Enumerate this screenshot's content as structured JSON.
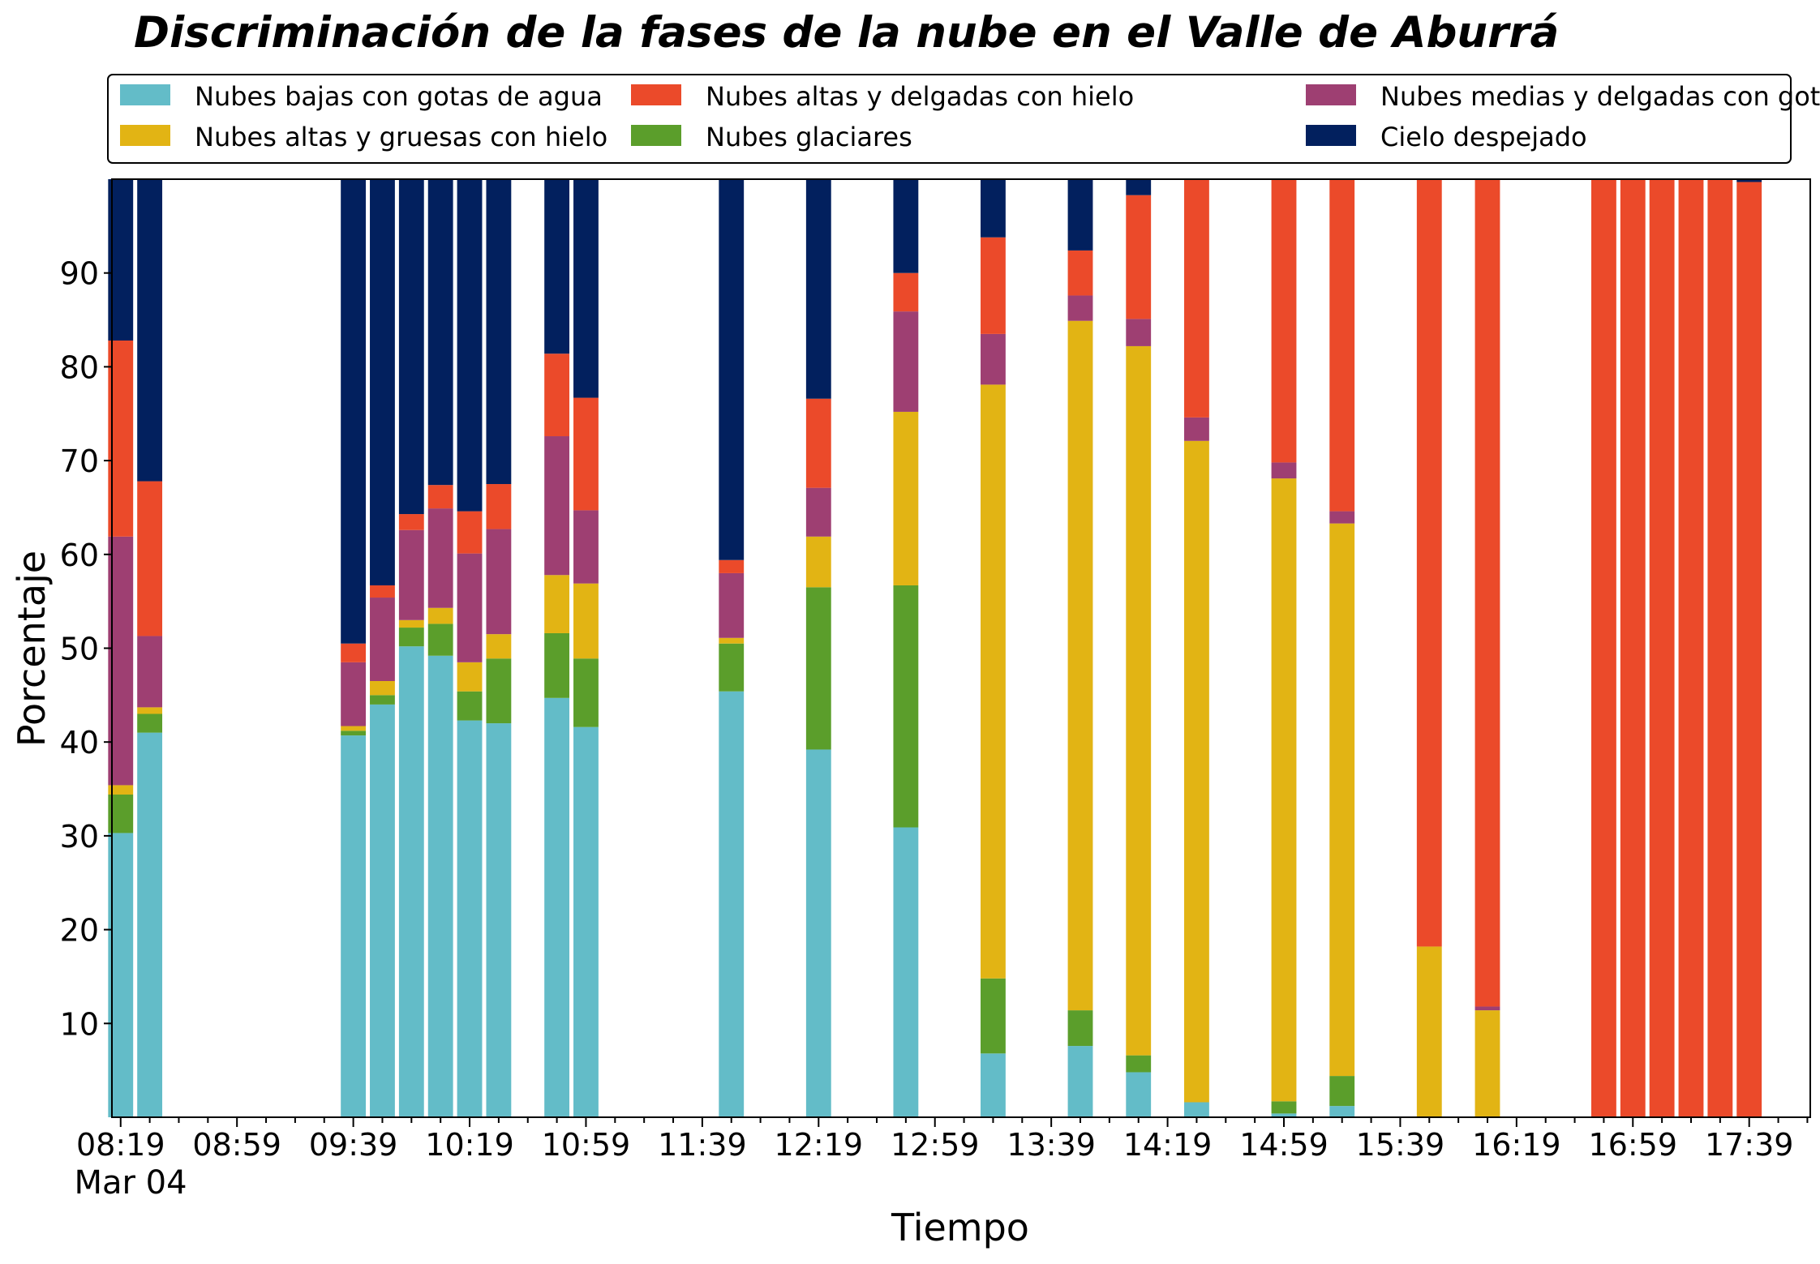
{
  "chart_data": {
    "type": "bar",
    "stacked": true,
    "title": "Discriminación de la fases de la nube en el Valle de Aburrá",
    "xlabel": "Tiempo",
    "ylabel": "Porcentaje",
    "ylim": [
      0,
      100
    ],
    "yticks": [
      10,
      20,
      30,
      40,
      50,
      60,
      70,
      80,
      90
    ],
    "xlim": [
      "08:16",
      "18:00"
    ],
    "x_tick_labels": [
      "08:19",
      "08:59",
      "09:39",
      "10:19",
      "10:59",
      "11:39",
      "12:19",
      "12:59",
      "13:39",
      "14:19",
      "14:59",
      "15:39",
      "16:19",
      "16:59",
      "17:39"
    ],
    "x_date_label": "Mar 04",
    "grid": false,
    "legend_position": "top",
    "categories": [
      "08:19",
      "08:29",
      "09:39",
      "09:49",
      "09:59",
      "10:09",
      "10:19",
      "10:29",
      "10:49",
      "10:59",
      "11:49",
      "12:19",
      "12:49",
      "13:19",
      "13:49",
      "14:09",
      "14:29",
      "14:59",
      "15:19",
      "15:49",
      "16:09",
      "16:49",
      "16:59",
      "17:09",
      "17:19",
      "17:29",
      "17:39"
    ],
    "series": [
      {
        "name": "Nubes bajas con gotas de agua",
        "color": "#63bcc8",
        "values": [
          30.3,
          41.0,
          40.7,
          44.0,
          50.2,
          49.2,
          42.3,
          42.0,
          44.7,
          41.6,
          45.4,
          39.2,
          30.9,
          6.8,
          7.6,
          4.8,
          1.6,
          0.4,
          1.2,
          0,
          0,
          0,
          0,
          0,
          0,
          0,
          0
        ]
      },
      {
        "name": "Nubes glaciares",
        "color": "#5b9e2b",
        "values": [
          4.1,
          2.0,
          0.5,
          1.0,
          2.0,
          3.4,
          3.1,
          6.9,
          6.9,
          7.3,
          5.1,
          17.3,
          25.8,
          8.0,
          3.8,
          1.8,
          0,
          1.3,
          3.2,
          0,
          0,
          0,
          0,
          0,
          0,
          0,
          0
        ]
      },
      {
        "name": "Nubes altas y gruesas con hielo",
        "color": "#e2b414",
        "values": [
          1.0,
          0.7,
          0.5,
          1.5,
          0.8,
          1.7,
          3.1,
          2.6,
          6.2,
          8.0,
          0.6,
          5.4,
          18.5,
          63.3,
          73.5,
          75.6,
          70.5,
          66.4,
          58.9,
          18.2,
          11.4,
          0,
          0,
          0,
          0,
          0,
          0
        ]
      },
      {
        "name": "Nubes medias y delgadas con gotas de agua",
        "color": "#9e3f72",
        "values": [
          26.5,
          7.6,
          6.8,
          8.9,
          9.6,
          10.6,
          11.6,
          11.2,
          14.8,
          7.8,
          6.9,
          5.2,
          10.7,
          5.4,
          2.7,
          2.9,
          2.5,
          1.7,
          1.3,
          0,
          0.4,
          0,
          0,
          0,
          0,
          0,
          0
        ]
      },
      {
        "name": "Nubes altas y delgadas con hielo",
        "color": "#eb4a2a",
        "values": [
          20.9,
          16.5,
          2.0,
          1.3,
          1.7,
          2.5,
          4.5,
          4.8,
          8.8,
          12.0,
          1.4,
          9.5,
          4.1,
          10.3,
          4.8,
          13.2,
          25.4,
          30.2,
          35.4,
          81.8,
          88.2,
          100,
          100,
          100,
          100,
          100,
          99.7
        ]
      },
      {
        "name": "Cielo despejado",
        "color": "#02205e",
        "values": [
          17.2,
          32.2,
          49.5,
          43.3,
          35.7,
          32.6,
          35.4,
          32.5,
          18.6,
          23.3,
          40.6,
          23.4,
          10.0,
          6.2,
          7.6,
          1.7,
          0,
          0,
          0,
          0,
          0,
          0,
          0,
          0,
          0,
          0,
          0.3
        ]
      }
    ]
  }
}
